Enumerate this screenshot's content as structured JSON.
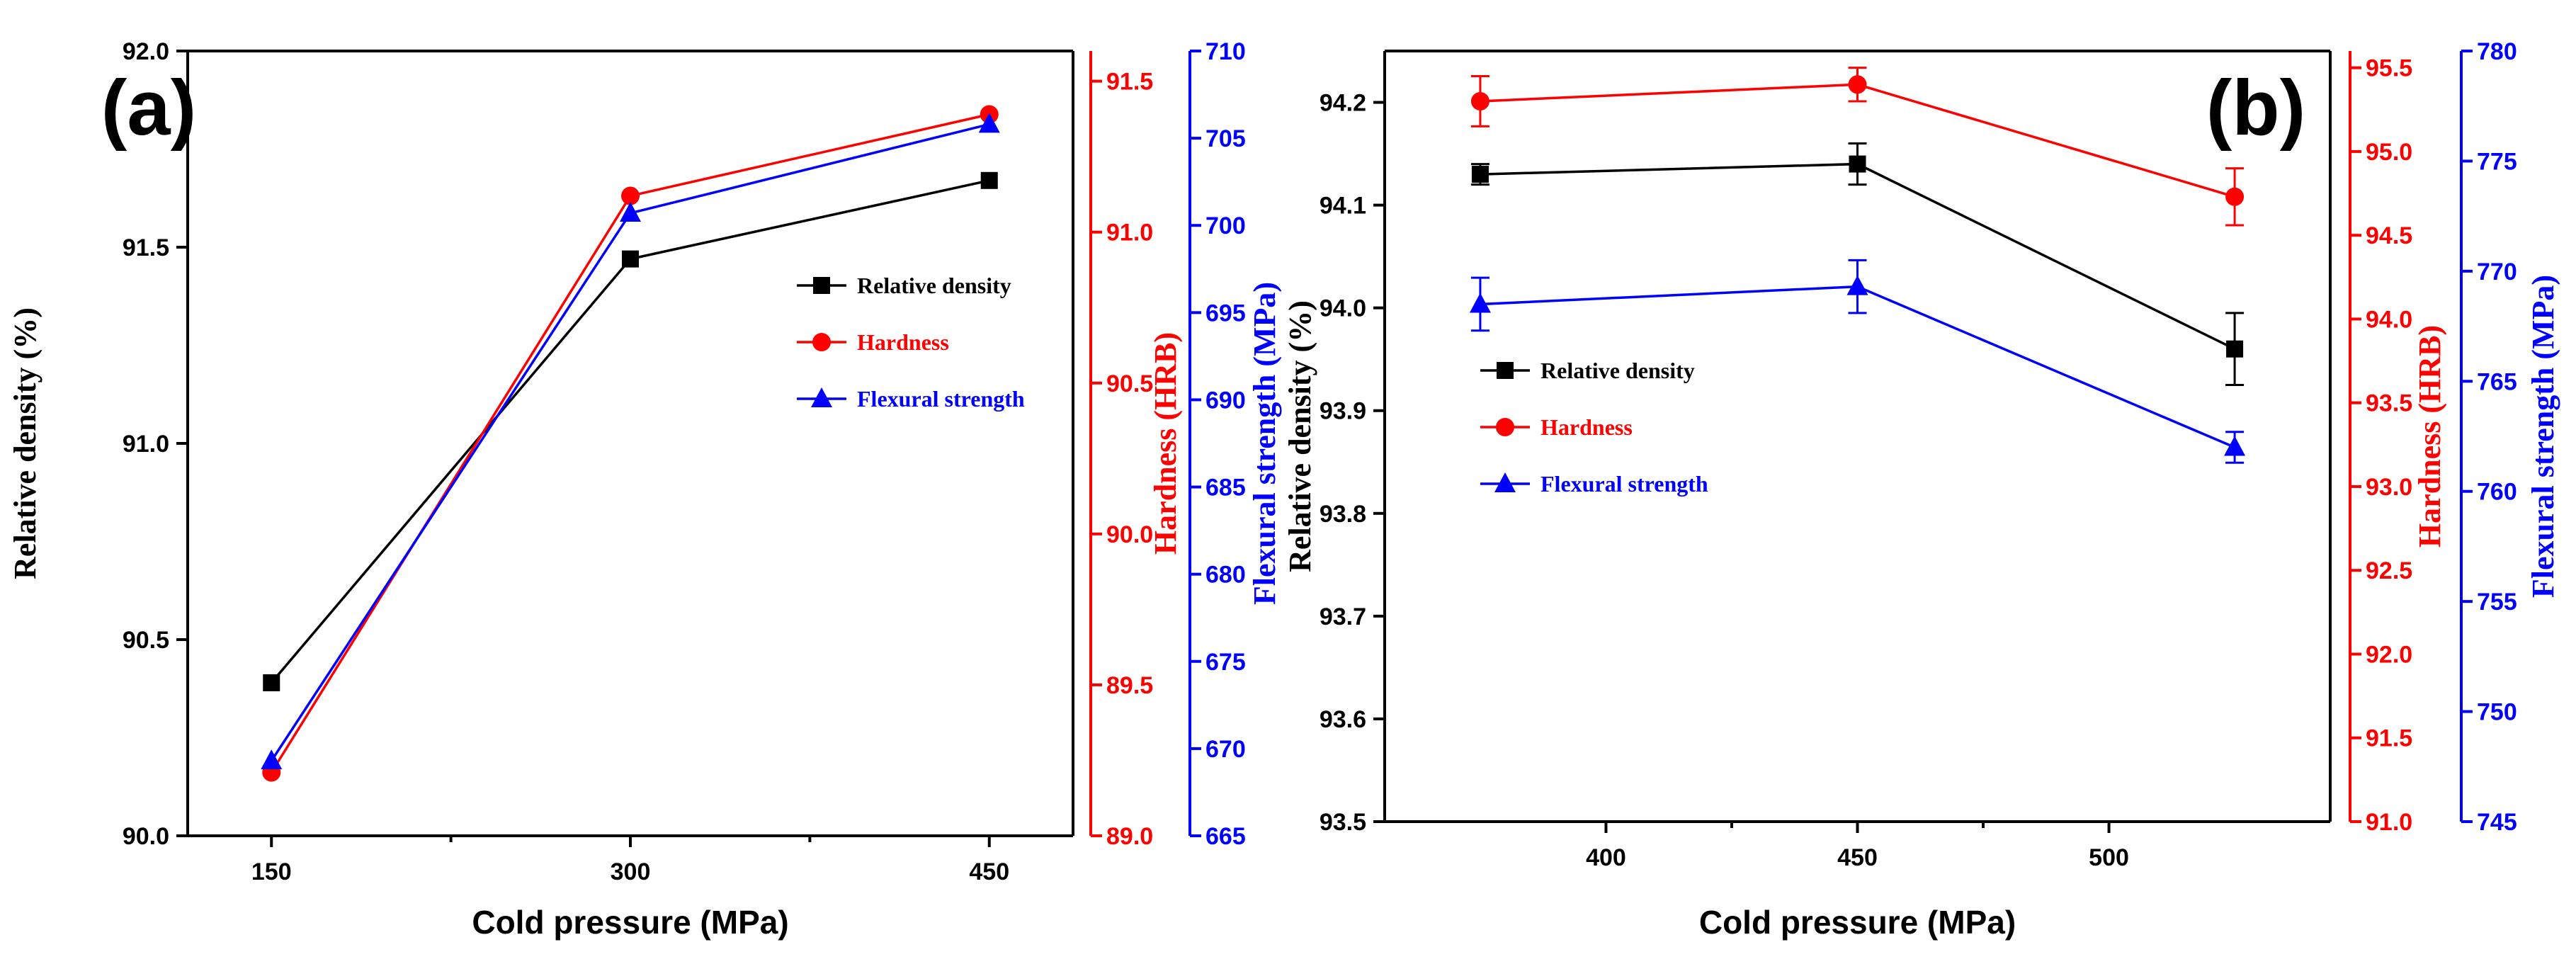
{
  "colors": {
    "axis": "#000000",
    "density": "#000000",
    "hardness": "#ff0000",
    "strength": "#0000ff"
  },
  "chart_data": [
    {
      "type": "line",
      "panel_label": "(a)",
      "xlabel": "Cold pressure (MPa)",
      "x": [
        150,
        300,
        450
      ],
      "xticks": [
        150,
        300,
        450
      ],
      "xtick_labels": [
        "150",
        "300",
        "450"
      ],
      "xlim": [
        115,
        485
      ],
      "legend_position": "center-right",
      "axes": {
        "left": {
          "label": "Relative density (%)",
          "ylim": [
            90.0,
            92.0
          ],
          "ticks": [
            90.0,
            90.5,
            91.0,
            91.5,
            92.0
          ],
          "tick_labels": [
            "90.0",
            "90.5",
            "91.0",
            "91.5",
            "92.0"
          ]
        },
        "right1": {
          "label": "Hardness (HRB)",
          "ylim": [
            89.0,
            91.6
          ],
          "ticks": [
            89.0,
            89.5,
            90.0,
            90.5,
            91.0,
            91.5
          ],
          "tick_labels": [
            "89.0",
            "89.5",
            "90.0",
            "90.5",
            "91.0",
            "91.5"
          ]
        },
        "right2": {
          "label": "Flexural strength (MPa)",
          "ylim": [
            665,
            710
          ],
          "ticks": [
            665,
            670,
            675,
            680,
            685,
            690,
            695,
            700,
            705,
            710
          ],
          "tick_labels": [
            "665",
            "670",
            "675",
            "680",
            "685",
            "690",
            "695",
            "700",
            "705",
            "710"
          ]
        }
      },
      "series": [
        {
          "name": "Relative density",
          "axis": "left",
          "marker": "square",
          "color": "#000000",
          "values": [
            90.39,
            91.47,
            91.67
          ]
        },
        {
          "name": "Hardness",
          "axis": "right1",
          "marker": "circle",
          "color": "#ff0000",
          "values": [
            89.21,
            91.12,
            91.39
          ]
        },
        {
          "name": "Flexural strength",
          "axis": "right2",
          "marker": "triangle",
          "color": "#0000ff",
          "values": [
            669.3,
            700.7,
            705.8
          ]
        }
      ]
    },
    {
      "type": "line",
      "panel_label": "(b)",
      "xlabel": "Cold pressure (MPa)",
      "x": [
        375,
        450,
        525
      ],
      "xticks": [
        400,
        450,
        500
      ],
      "xtick_labels": [
        "400",
        "450",
        "500"
      ],
      "xlim": [
        356,
        544
      ],
      "legend_position": "center-left",
      "axes": {
        "left": {
          "label": "Relative density (%)",
          "ylim": [
            93.5,
            94.25
          ],
          "ticks": [
            93.5,
            93.6,
            93.7,
            93.8,
            93.9,
            94.0,
            94.1,
            94.2
          ],
          "tick_labels": [
            "93.5",
            "93.6",
            "93.7",
            "93.8",
            "93.9",
            "94.0",
            "94.1",
            "94.2"
          ]
        },
        "right1": {
          "label": "Hardness (HRB)",
          "ylim": [
            91.0,
            95.6
          ],
          "ticks": [
            91.0,
            91.5,
            92.0,
            92.5,
            93.0,
            93.5,
            94.0,
            94.5,
            95.0,
            95.5
          ],
          "tick_labels": [
            "91.0",
            "91.5",
            "92.0",
            "92.5",
            "93.0",
            "93.5",
            "94.0",
            "94.5",
            "95.0",
            "95.5"
          ]
        },
        "right2": {
          "label": "Flexural strength (MPa)",
          "ylim": [
            745,
            780
          ],
          "ticks": [
            745,
            750,
            755,
            760,
            765,
            770,
            775,
            780
          ],
          "tick_labels": [
            "745",
            "750",
            "755",
            "760",
            "765",
            "770",
            "775",
            "780"
          ]
        }
      },
      "series": [
        {
          "name": "Relative density",
          "axis": "left",
          "marker": "square",
          "color": "#000000",
          "values": [
            94.13,
            94.14,
            93.96
          ],
          "errors": [
            0.01,
            0.02,
            0.035
          ]
        },
        {
          "name": "Hardness",
          "axis": "right1",
          "marker": "circle",
          "color": "#ff0000",
          "values": [
            95.3,
            95.4,
            94.73
          ],
          "errors": [
            0.15,
            0.1,
            0.17
          ]
        },
        {
          "name": "Flexural strength",
          "axis": "right2",
          "marker": "triangle",
          "color": "#0000ff",
          "values": [
            768.5,
            769.3,
            762.0
          ],
          "errors": [
            1.2,
            1.2,
            0.7
          ]
        }
      ]
    }
  ]
}
